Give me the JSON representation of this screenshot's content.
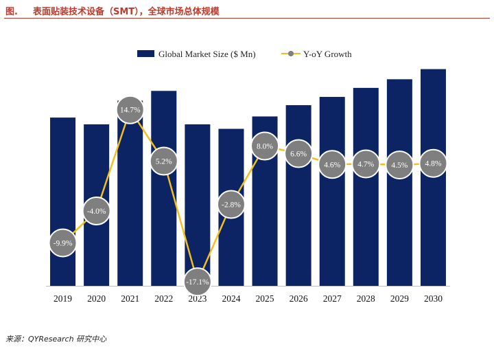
{
  "header": {
    "figure_label": "图.",
    "title": "表面贴装技术设备（SMT），全球市场总体规模"
  },
  "source": "来源：QYResearch 研究中心",
  "colors": {
    "bar": "#0c2463",
    "line": "#f2bf1c",
    "marker": "#7f7f7f",
    "marker_stroke": "#ffffff",
    "title": "#c0392b"
  },
  "chart_data": {
    "type": "bar",
    "categories": [
      "2019",
      "2020",
      "2021",
      "2022",
      "2023",
      "2024",
      "2025",
      "2026",
      "2027",
      "2028",
      "2029",
      "2030"
    ],
    "series": [
      {
        "name": "Global Market Size ($ Mn)",
        "type": "bar",
        "values": [
          4480,
          4300,
          4930,
          5190,
          4300,
          4180,
          4510,
          4810,
          5030,
          5270,
          5500,
          5770
        ]
      },
      {
        "name": "Y-oY Growth",
        "type": "line",
        "values": [
          -9.9,
          -4.0,
          14.7,
          5.2,
          -17.1,
          -2.8,
          8.0,
          6.6,
          4.6,
          4.7,
          4.5,
          4.8
        ],
        "labels": [
          "-9.9%",
          "-4.0%",
          "14.7%",
          "5.2%",
          "-17.1%",
          "-2.8%",
          "8.0%",
          "6.6%",
          "4.6%",
          "4.7%",
          "4.5%",
          "4.8%"
        ]
      }
    ],
    "bar_axis": {
      "min": 0,
      "max": 6000
    },
    "line_axis": {
      "min": -20,
      "max": 20
    },
    "legend_position": "top",
    "grid": false
  }
}
